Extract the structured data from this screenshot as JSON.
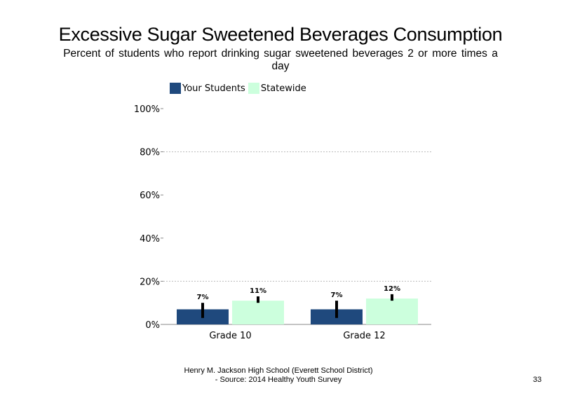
{
  "title": "Excessive Sugar Sweetened Beverages Consumption",
  "subtitle": "Percent of students who report drinking sugar sweetened beverages 2 or more times a day",
  "footer": {
    "line1": "Henry M. Jackson High School (Everett School District)",
    "line2": "- Source: 2014 Healthy Youth Survey"
  },
  "page_number": "33",
  "colors": {
    "your_students": "#1f497d",
    "statewide": "#ccffdd",
    "error_bar": "#000000",
    "grid": "#bbbbbb"
  },
  "chart_data": {
    "type": "bar",
    "categories": [
      "Grade 10",
      "Grade 12"
    ],
    "series": [
      {
        "name": "Your Students",
        "values": [
          7,
          7
        ],
        "labels": [
          "7%",
          "7%"
        ],
        "error_low": [
          3,
          3
        ],
        "error_high": [
          10,
          11
        ]
      },
      {
        "name": "Statewide",
        "values": [
          11,
          12
        ],
        "labels": [
          "11%",
          "12%"
        ],
        "error_low": [
          10,
          11
        ],
        "error_high": [
          13,
          14
        ]
      }
    ],
    "ylim": [
      0,
      100
    ],
    "yticks": [
      0,
      20,
      40,
      60,
      80,
      100
    ],
    "ytick_labels": [
      "0%",
      "20%",
      "40%",
      "60%",
      "80%",
      "100%"
    ],
    "gridlines_at": [
      20,
      80
    ],
    "legend_position": "top",
    "xlabel": "",
    "ylabel": ""
  }
}
